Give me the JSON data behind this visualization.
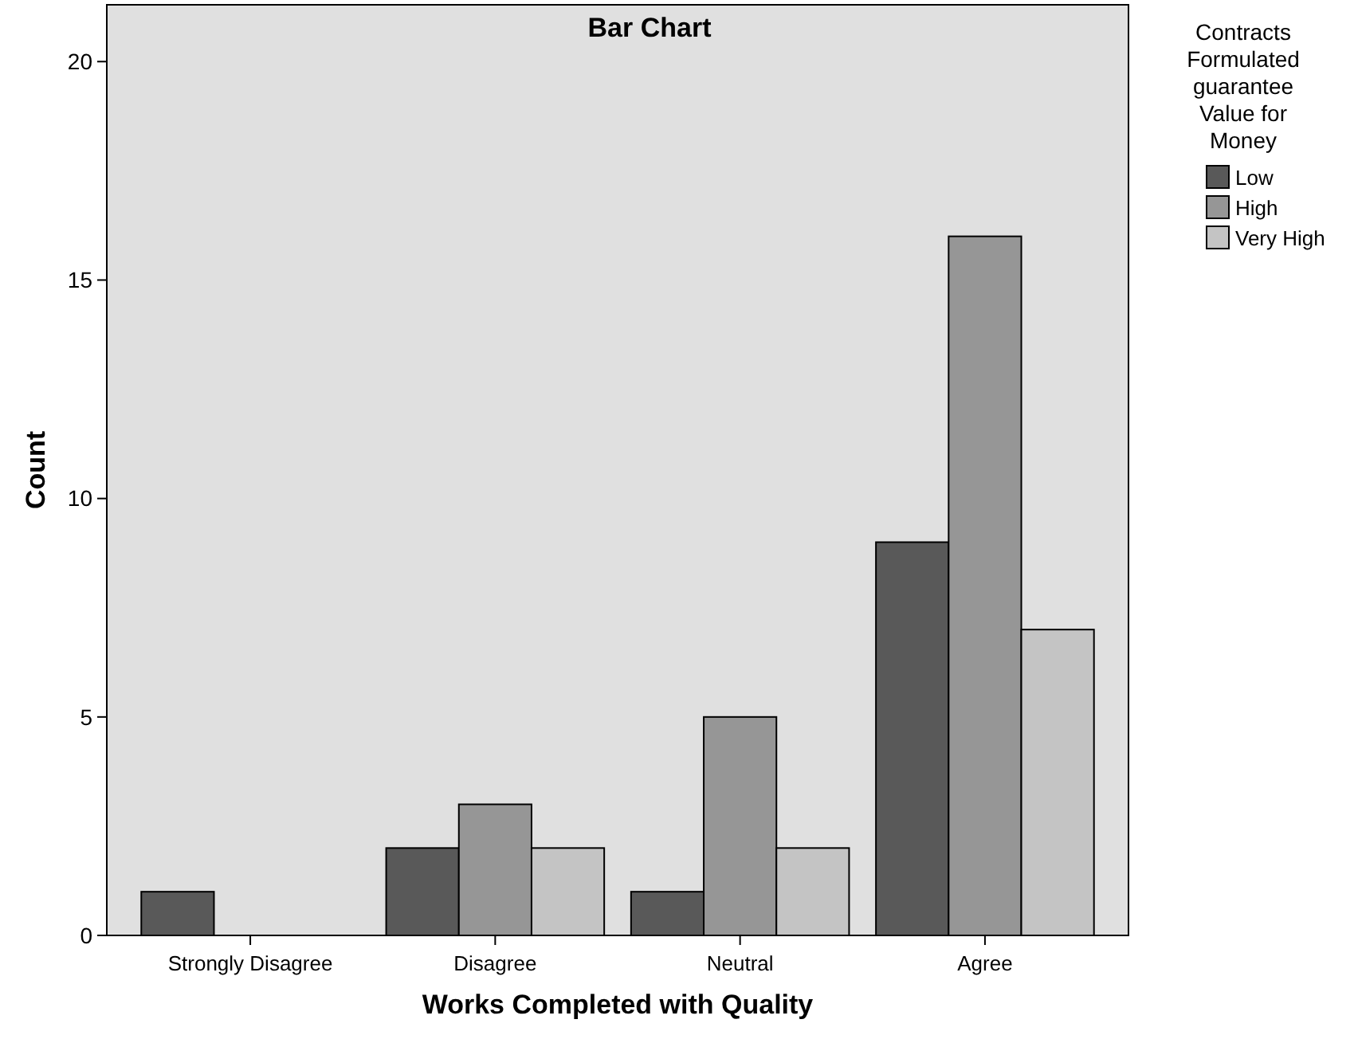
{
  "chart_data": {
    "type": "bar",
    "title": "Bar Chart",
    "xlabel": "Works Completed with Quality",
    "ylabel": "Count",
    "legend_title": "Contracts Formulated guarantee Value for Money",
    "categories": [
      "Strongly Disagree",
      "Disagree",
      "Neutral",
      "Agree"
    ],
    "series": [
      {
        "name": "Low",
        "color": "#595959",
        "values": [
          1,
          2,
          1,
          9
        ]
      },
      {
        "name": "High",
        "color": "#969696",
        "values": [
          0,
          3,
          5,
          16
        ]
      },
      {
        "name": "Very High",
        "color": "#c4c4c4",
        "values": [
          0,
          2,
          2,
          7
        ]
      }
    ],
    "ylim": [
      0,
      21.3
    ],
    "yticks": [
      0,
      5,
      10,
      15,
      20
    ],
    "grid": false,
    "legend": "right"
  }
}
